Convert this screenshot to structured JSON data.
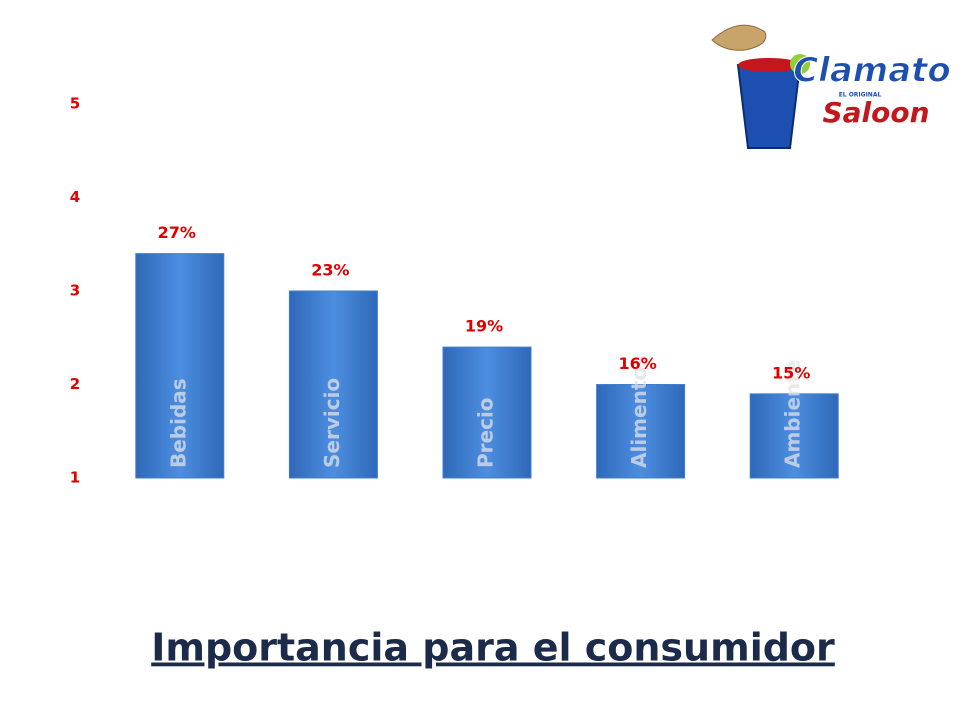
{
  "chart_data": {
    "type": "bar",
    "title": "Importancia para el consumidor",
    "categories": [
      "Bebidas",
      "Servicio",
      "Precio",
      "Alimentos",
      "Ambiente"
    ],
    "values": [
      3.4,
      3.0,
      2.4,
      2.0,
      1.9
    ],
    "annotations": [
      "27%",
      "23%",
      "19%",
      "16%",
      "15%"
    ],
    "color": "#3f7dd0",
    "ylim": [
      1,
      5
    ],
    "yticks": [
      1,
      2,
      3,
      4,
      5
    ],
    "grid": false
  },
  "logo": {
    "brand": "Clamato",
    "tagline": "EL ORIGINAL",
    "name": "Saloon"
  }
}
